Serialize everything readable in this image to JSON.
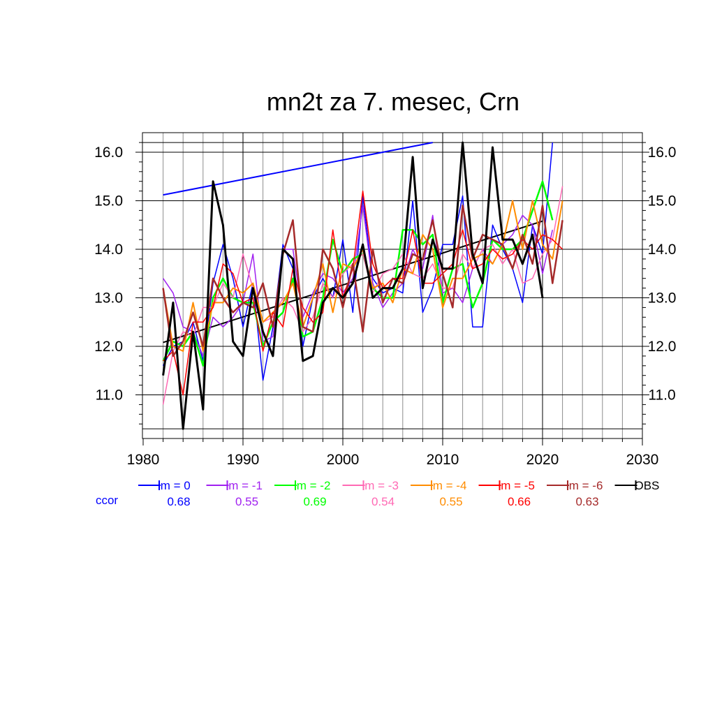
{
  "chart_data": {
    "type": "line",
    "title": "mn2t za 7. mesec, Crn",
    "xlabel": "",
    "ylabel": "",
    "xlim": [
      1980,
      2030
    ],
    "ylim": [
      10.25,
      16.2
    ],
    "x_ticks": [
      "1980",
      "1990",
      "2000",
      "2010",
      "2020",
      "2030"
    ],
    "y_ticks": [
      "11.0",
      "12.0",
      "13.0",
      "14.0",
      "15.0",
      "16.0"
    ],
    "grid": true,
    "legend_position": "bottom",
    "ccor_label": "ccor",
    "series": [
      {
        "name": "lm = 0",
        "color": "#0000ff",
        "ccor": "0.68",
        "width": 1.5,
        "x": [
          1982,
          1983,
          1984,
          1985,
          1986,
          1987,
          1988,
          1989,
          1990,
          1991,
          1992,
          1993,
          1994,
          1995,
          1996,
          1997,
          1998,
          1999,
          2000,
          2001,
          2002,
          2003,
          2004,
          2005,
          2006,
          2007,
          2008,
          2009,
          2010,
          2011,
          2012,
          2013,
          2014,
          2015,
          2016,
          2017,
          2018,
          2019,
          2020,
          2021
        ],
        "y": [
          11.6,
          12.0,
          12.1,
          12.5,
          11.7,
          13.3,
          14.1,
          13.4,
          12.4,
          13.3,
          11.3,
          12.4,
          14.1,
          13.6,
          12.0,
          13.0,
          13.4,
          13.0,
          14.2,
          12.7,
          15.1,
          13.4,
          13.1,
          13.2,
          13.1,
          15.0,
          12.7,
          13.2,
          14.1,
          14.1,
          15.1,
          12.4,
          12.4,
          14.5,
          14.0,
          13.6,
          12.9,
          14.5,
          13.9,
          16.2
        ]
      },
      {
        "name": "lm = -1",
        "color": "#a020f0",
        "ccor": "0.55",
        "width": 1.5,
        "x": [
          1982,
          1983,
          1984,
          1985,
          1986,
          1987,
          1988,
          1989,
          1990,
          1991,
          1992,
          1993,
          1994,
          1995,
          1996,
          1997,
          1998,
          1999,
          2000,
          2001,
          2002,
          2003,
          2004,
          2005,
          2006,
          2007,
          2008,
          2009,
          2010,
          2011,
          2012,
          2013,
          2014,
          2015,
          2016,
          2017,
          2018,
          2019,
          2020,
          2021
        ],
        "y": [
          13.4,
          13.1,
          12.4,
          12.3,
          11.8,
          12.6,
          12.4,
          12.6,
          12.9,
          13.9,
          12.1,
          12.2,
          14.0,
          14.0,
          12.6,
          13.1,
          13.5,
          13.4,
          13.1,
          13.4,
          14.9,
          13.3,
          12.8,
          13.1,
          13.3,
          14.0,
          13.6,
          14.7,
          13.1,
          13.2,
          12.9,
          13.6,
          14.0,
          13.7,
          14.1,
          14.3,
          14.7,
          14.5,
          13.5,
          14.4
        ]
      },
      {
        "name": "lm = -2",
        "color": "#00ff00",
        "ccor": "0.69",
        "width": 2.5,
        "x": [
          1982,
          1983,
          1984,
          1985,
          1986,
          1987,
          1988,
          1989,
          1990,
          1991,
          1992,
          1993,
          1994,
          1995,
          1996,
          1997,
          1998,
          1999,
          2000,
          2001,
          2002,
          2003,
          2004,
          2005,
          2006,
          2007,
          2008,
          2009,
          2010,
          2011,
          2012,
          2013,
          2014,
          2015,
          2016,
          2017,
          2018,
          2019,
          2020,
          2021
        ],
        "y": [
          11.7,
          12.1,
          12.0,
          12.3,
          11.6,
          13.0,
          13.4,
          13.0,
          12.9,
          12.9,
          12.0,
          12.5,
          12.7,
          13.4,
          12.2,
          12.3,
          13.0,
          14.2,
          13.5,
          13.8,
          13.9,
          13.2,
          13.0,
          13.0,
          14.4,
          14.4,
          14.1,
          14.3,
          12.9,
          13.6,
          13.7,
          12.8,
          13.3,
          14.2,
          14.0,
          14.0,
          14.2,
          14.8,
          15.4,
          14.6
        ]
      },
      {
        "name": "lm = -3",
        "color": "#ff69b4",
        "ccor": "0.54",
        "width": 1.5,
        "x": [
          1982,
          1983,
          1984,
          1985,
          1986,
          1987,
          1988,
          1989,
          1990,
          1991,
          1992,
          1993,
          1994,
          1995,
          1996,
          1997,
          1998,
          1999,
          2000,
          2001,
          2002,
          2003,
          2004,
          2005,
          2006,
          2007,
          2008,
          2009,
          2010,
          2011,
          2012,
          2013,
          2014,
          2015,
          2016,
          2017,
          2018,
          2019,
          2020,
          2021,
          2022
        ],
        "y": [
          10.8,
          11.9,
          12.3,
          12.2,
          12.8,
          12.8,
          13.3,
          13.0,
          13.9,
          13.2,
          12.5,
          12.6,
          13.0,
          12.8,
          12.3,
          12.6,
          13.3,
          13.0,
          13.5,
          13.7,
          13.9,
          13.1,
          13.5,
          13.6,
          13.9,
          13.5,
          13.4,
          13.7,
          13.2,
          13.2,
          13.9,
          13.6,
          14.0,
          14.1,
          13.7,
          14.0,
          13.3,
          13.4,
          13.9,
          14.2,
          15.3
        ]
      },
      {
        "name": "lm = -4",
        "color": "#ff8c00",
        "ccor": "0.55",
        "width": 2,
        "x": [
          1982,
          1983,
          1984,
          1985,
          1986,
          1987,
          1988,
          1989,
          1990,
          1991,
          1992,
          1993,
          1994,
          1995,
          1996,
          1997,
          1998,
          1999,
          2000,
          2001,
          2002,
          2003,
          2004,
          2005,
          2006,
          2007,
          2008,
          2009,
          2010,
          2011,
          2012,
          2013,
          2014,
          2015,
          2016,
          2017,
          2018,
          2019,
          2020,
          2021,
          2022
        ],
        "y": [
          13.2,
          12.0,
          11.9,
          12.9,
          11.9,
          12.9,
          12.9,
          13.2,
          13.1,
          13.3,
          12.5,
          12.7,
          12.9,
          13.3,
          12.4,
          13.0,
          13.7,
          12.7,
          13.7,
          13.6,
          14.0,
          13.2,
          13.3,
          12.9,
          13.6,
          13.5,
          14.3,
          14.0,
          12.8,
          13.4,
          13.4,
          13.8,
          13.9,
          13.7,
          14.1,
          15.0,
          14.0,
          15.0,
          14.1,
          13.8,
          15.0
        ]
      },
      {
        "name": "lm = -5",
        "color": "#ff0000",
        "ccor": "0.66",
        "width": 1.5,
        "x": [
          1982,
          1983,
          1984,
          1985,
          1986,
          1987,
          1988,
          1989,
          1990,
          1991,
          1992,
          1993,
          1994,
          1995,
          1996,
          1997,
          1998,
          1999,
          2000,
          2001,
          2002,
          2003,
          2004,
          2005,
          2006,
          2007,
          2008,
          2009,
          2010,
          2011,
          2012,
          2013,
          2014,
          2015,
          2016,
          2017,
          2018,
          2019,
          2020,
          2021,
          2022
        ],
        "y": [
          11.7,
          11.9,
          11.0,
          12.5,
          12.5,
          12.8,
          13.7,
          13.5,
          12.9,
          13.0,
          11.9,
          12.7,
          12.4,
          13.6,
          12.8,
          12.5,
          12.7,
          14.4,
          13.0,
          13.6,
          15.2,
          13.7,
          13.2,
          13.4,
          13.4,
          14.4,
          13.3,
          13.3,
          13.5,
          13.7,
          14.4,
          13.6,
          13.7,
          14.0,
          13.8,
          13.9,
          14.2,
          14.0,
          14.3,
          14.2,
          14.0
        ]
      },
      {
        "name": "lm = -6",
        "color": "#a52a2a",
        "ccor": "0.63",
        "width": 2.5,
        "x": [
          1982,
          1983,
          1984,
          1985,
          1986,
          1987,
          1988,
          1989,
          1990,
          1991,
          1992,
          1993,
          1994,
          1995,
          1996,
          1997,
          1998,
          1999,
          2000,
          2001,
          2002,
          2003,
          2004,
          2005,
          2006,
          2007,
          2008,
          2009,
          2010,
          2011,
          2012,
          2013,
          2014,
          2015,
          2016,
          2017,
          2018,
          2019,
          2020,
          2021,
          2022
        ],
        "y": [
          13.2,
          11.8,
          12.1,
          12.7,
          12.0,
          13.4,
          13.0,
          12.7,
          12.9,
          12.8,
          13.3,
          12.4,
          13.9,
          14.6,
          12.4,
          12.3,
          14.0,
          13.6,
          12.8,
          13.7,
          12.3,
          14.0,
          12.9,
          13.4,
          13.3,
          13.9,
          13.8,
          14.6,
          13.5,
          12.8,
          14.9,
          13.8,
          14.3,
          14.2,
          14.1,
          13.6,
          14.3,
          13.7,
          14.9,
          13.3,
          14.6
        ]
      },
      {
        "name": "OBS",
        "color": "#000000",
        "ccor": "",
        "width": 3,
        "x": [
          1982,
          1983,
          1984,
          1985,
          1986,
          1987,
          1988,
          1989,
          1990,
          1991,
          1992,
          1993,
          1994,
          1995,
          1996,
          1997,
          1998,
          1999,
          2000,
          2001,
          2002,
          2003,
          2004,
          2005,
          2006,
          2007,
          2008,
          2009,
          2010,
          2011,
          2012,
          2013,
          2014,
          2015,
          2016,
          2017,
          2018,
          2019,
          2020
        ],
        "y": [
          11.4,
          12.9,
          10.3,
          12.3,
          10.7,
          15.4,
          14.5,
          12.1,
          11.8,
          13.2,
          12.3,
          11.8,
          14.0,
          13.8,
          11.7,
          11.8,
          12.9,
          13.2,
          13.0,
          13.3,
          14.1,
          13.0,
          13.2,
          13.2,
          13.6,
          15.9,
          13.2,
          14.2,
          13.6,
          13.6,
          16.2,
          13.9,
          13.3,
          16.1,
          14.2,
          14.2,
          13.7,
          14.3,
          13.0
        ]
      }
    ],
    "trend_lines": [
      {
        "color": "#0000ff",
        "x": [
          1982,
          2009
        ],
        "y": [
          15.12,
          16.2
        ]
      },
      {
        "color": "#000000",
        "x": [
          1982,
          2020
        ],
        "y": [
          12.08,
          14.58
        ]
      }
    ]
  }
}
